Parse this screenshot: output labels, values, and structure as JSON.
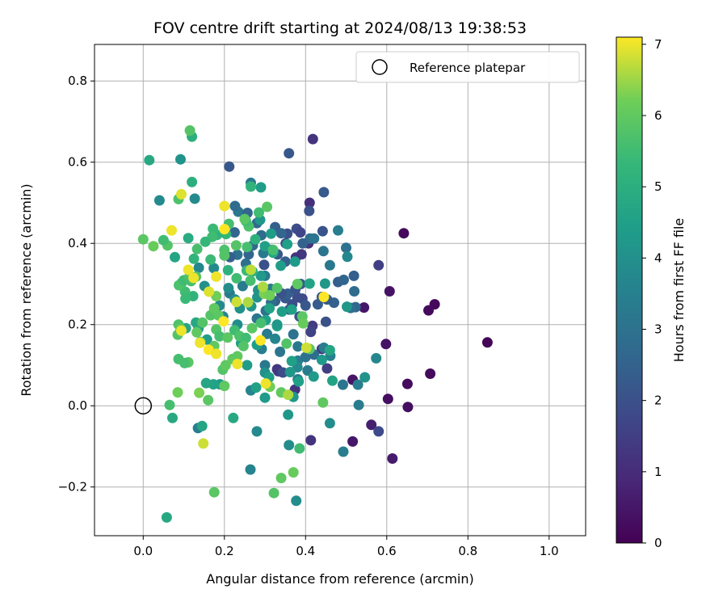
{
  "chart_data": {
    "type": "scatter",
    "title": "FOV centre drift starting at 2024/08/13 19:38:53",
    "xlabel": "Angular distance from reference (arcmin)",
    "ylabel": "Rotation from reference (arcmin)",
    "xlim": [
      -0.12,
      1.09
    ],
    "ylim": [
      -0.32,
      0.89
    ],
    "xticks": [
      0.0,
      0.2,
      0.4,
      0.6,
      0.8,
      1.0
    ],
    "xtick_labels": [
      "0.0",
      "0.2",
      "0.4",
      "0.6",
      "0.8",
      "1.0"
    ],
    "yticks": [
      -0.2,
      0.0,
      0.2,
      0.4,
      0.6,
      0.8
    ],
    "ytick_labels": [
      "−0.2",
      "0.0",
      "0.2",
      "0.4",
      "0.6",
      "0.8"
    ],
    "grid": true,
    "legend": {
      "placement": "top-right",
      "entries": [
        {
          "label": "Reference platepar",
          "marker": "open-circle"
        }
      ]
    },
    "reference_point": {
      "x": 0.0,
      "y": 0.0
    },
    "colorbar": {
      "label": "Hours from first FF file",
      "colormap": "viridis",
      "range": [
        0,
        7.1
      ],
      "ticks": [
        0,
        1,
        2,
        3,
        4,
        5,
        6,
        7
      ],
      "tick_labels": [
        "0",
        "1",
        "2",
        "3",
        "4",
        "5",
        "6",
        "7"
      ]
    },
    "points": [
      [
        0.848,
        0.156,
        0.1
      ],
      [
        0.642,
        0.425,
        0.15
      ],
      [
        0.718,
        0.25,
        0.15
      ],
      [
        0.703,
        0.235,
        0.2
      ],
      [
        0.707,
        0.079,
        0.2
      ],
      [
        0.651,
        0.054,
        0.25
      ],
      [
        0.652,
        -0.003,
        0.3
      ],
      [
        0.603,
        0.017,
        0.3
      ],
      [
        0.607,
        0.282,
        0.4
      ],
      [
        0.598,
        0.152,
        0.4
      ],
      [
        0.614,
        -0.13,
        0.6
      ],
      [
        0.562,
        -0.047,
        0.7
      ],
      [
        0.516,
        -0.088,
        0.5
      ],
      [
        0.516,
        0.064,
        0.45
      ],
      [
        0.544,
        0.242,
        0.5
      ],
      [
        0.58,
        0.346,
        1.5
      ],
      [
        0.58,
        -0.063,
        1.8
      ],
      [
        0.418,
        0.657,
        1.2
      ],
      [
        0.41,
        0.5,
        1.1
      ],
      [
        0.413,
        -0.085,
        1.2
      ],
      [
        0.44,
        0.14,
        1.3
      ],
      [
        0.453,
        0.092,
        1.5
      ],
      [
        0.417,
        0.197,
        1.4
      ],
      [
        0.407,
        0.4,
        1.2
      ],
      [
        0.39,
        0.373,
        1.3
      ],
      [
        0.376,
        0.365,
        1.2
      ],
      [
        0.413,
        0.182,
        1.6
      ],
      [
        0.374,
        0.04,
        1.2
      ],
      [
        0.333,
        0.085,
        1.5
      ],
      [
        0.33,
        0.09,
        1.3
      ],
      [
        0.344,
        0.082,
        1.9
      ],
      [
        0.359,
        0.622,
        2.2
      ],
      [
        0.212,
        0.589,
        2.2
      ],
      [
        0.409,
        0.48,
        2.0
      ],
      [
        0.445,
        0.526,
        2.3
      ],
      [
        0.442,
        0.43,
        2.1
      ],
      [
        0.378,
        0.436,
        1.9
      ],
      [
        0.387,
        0.427,
        1.7
      ],
      [
        0.355,
        0.424,
        2.0
      ],
      [
        0.351,
        0.4,
        1.8
      ],
      [
        0.325,
        0.44,
        2.4
      ],
      [
        0.34,
        0.425,
        2.6
      ],
      [
        0.316,
        0.384,
        2.6
      ],
      [
        0.331,
        0.373,
        2.2
      ],
      [
        0.298,
        0.347,
        2.0
      ],
      [
        0.35,
        0.355,
        2.4
      ],
      [
        0.392,
        0.264,
        1.8
      ],
      [
        0.367,
        0.25,
        1.9
      ],
      [
        0.385,
        0.22,
        2.1
      ],
      [
        0.35,
        0.265,
        2.2
      ],
      [
        0.36,
        0.237,
        2.1
      ],
      [
        0.356,
        0.276,
        2.4
      ],
      [
        0.38,
        0.267,
        1.9
      ],
      [
        0.34,
        0.277,
        2.0
      ],
      [
        0.325,
        0.258,
        2.5
      ],
      [
        0.4,
        0.247,
        2.2
      ],
      [
        0.375,
        0.287,
        2.1
      ],
      [
        0.388,
        0.3,
        2.3
      ],
      [
        0.43,
        0.25,
        2.3
      ],
      [
        0.44,
        0.268,
        2.2
      ],
      [
        0.45,
        0.207,
        2.0
      ],
      [
        0.47,
        0.254,
        2.5
      ],
      [
        0.453,
        0.262,
        2.3
      ],
      [
        0.48,
        0.305,
        2.4
      ],
      [
        0.494,
        0.31,
        2.6
      ],
      [
        0.519,
        0.32,
        2.4
      ],
      [
        0.52,
        0.282,
        2.8
      ],
      [
        0.523,
        0.243,
        2.7
      ],
      [
        0.511,
        0.241,
        2.9
      ],
      [
        0.5,
        0.389,
        3.0
      ],
      [
        0.48,
        0.432,
        3.4
      ],
      [
        0.503,
        0.367,
        3.7
      ],
      [
        0.411,
        0.412,
        2.9
      ],
      [
        0.421,
        0.412,
        3.1
      ],
      [
        0.393,
        0.4,
        2.5
      ],
      [
        0.444,
        0.381,
        3.1
      ],
      [
        0.46,
        0.346,
        3.2
      ],
      [
        0.265,
        0.549,
        3.2
      ],
      [
        0.234,
        0.478,
        3.2
      ],
      [
        0.257,
        0.475,
        2.6
      ],
      [
        0.226,
        0.492,
        2.8
      ],
      [
        0.28,
        0.45,
        2.7
      ],
      [
        0.291,
        0.42,
        2.8
      ],
      [
        0.27,
        0.395,
        2.7
      ],
      [
        0.26,
        0.373,
        2.6
      ],
      [
        0.253,
        0.35,
        2.9
      ],
      [
        0.232,
        0.372,
        3.0
      ],
      [
        0.214,
        0.366,
        2.4
      ],
      [
        0.225,
        0.427,
        2.6
      ],
      [
        0.296,
        0.376,
        3.2
      ],
      [
        0.3,
        0.32,
        3.3
      ],
      [
        0.314,
        0.288,
        3.3
      ],
      [
        0.315,
        0.255,
        2.9
      ],
      [
        0.302,
        0.234,
        3.0
      ],
      [
        0.28,
        0.215,
        3.1
      ],
      [
        0.245,
        0.295,
        3.3
      ],
      [
        0.213,
        0.277,
        3.2
      ],
      [
        0.305,
        0.177,
        3.3
      ],
      [
        0.325,
        0.165,
        3.6
      ],
      [
        0.292,
        0.14,
        3.4
      ],
      [
        0.337,
        0.133,
        3.1
      ],
      [
        0.37,
        0.176,
        3.0
      ],
      [
        0.381,
        0.146,
        3.2
      ],
      [
        0.381,
        0.111,
        3.4
      ],
      [
        0.4,
        0.12,
        3.0
      ],
      [
        0.421,
        0.126,
        2.8
      ],
      [
        0.445,
        0.143,
        3.3
      ],
      [
        0.461,
        0.123,
        3.5
      ],
      [
        0.405,
        0.087,
        3.3
      ],
      [
        0.381,
        0.065,
        3.2
      ],
      [
        0.38,
        0.095,
        3.8
      ],
      [
        0.492,
        0.052,
        3.1
      ],
      [
        0.529,
        0.052,
        3.4
      ],
      [
        0.531,
        0.002,
        3.3
      ],
      [
        0.493,
        -0.113,
        3.4
      ],
      [
        0.46,
        -0.043,
        3.9
      ],
      [
        0.574,
        0.117,
        3.7
      ],
      [
        0.546,
        0.07,
        4.1
      ],
      [
        0.377,
        -0.234,
        3.9
      ],
      [
        0.264,
        -0.157,
        3.6
      ],
      [
        0.28,
        -0.063,
        3.8
      ],
      [
        0.357,
        -0.022,
        4.2
      ],
      [
        0.359,
        -0.097,
        3.9
      ],
      [
        0.135,
        -0.055,
        3.4
      ],
      [
        0.265,
        0.038,
        3.6
      ],
      [
        0.3,
        0.1,
        3.2
      ],
      [
        0.232,
        0.2,
        3.9
      ],
      [
        0.21,
        0.29,
        3.9
      ],
      [
        0.226,
        0.262,
        3.9
      ],
      [
        0.188,
        0.247,
        3.8
      ],
      [
        0.197,
        0.22,
        3.7
      ],
      [
        0.151,
        0.295,
        4.0
      ],
      [
        0.174,
        0.339,
        3.8
      ],
      [
        0.137,
        0.34,
        3.7
      ],
      [
        0.127,
        0.51,
        3.8
      ],
      [
        0.092,
        0.607,
        4.1
      ],
      [
        0.04,
        0.506,
        3.8
      ],
      [
        0.238,
        0.24,
        4.0
      ],
      [
        0.266,
        0.245,
        4.2
      ],
      [
        0.283,
        0.285,
        4.1
      ],
      [
        0.29,
        0.538,
        4.4
      ],
      [
        0.288,
        0.458,
        4.2
      ],
      [
        0.315,
        0.424,
        4.4
      ],
      [
        0.3,
        0.393,
        4.5
      ],
      [
        0.355,
        0.398,
        4.5
      ],
      [
        0.374,
        0.355,
        4.3
      ],
      [
        0.32,
        0.377,
        4.7
      ],
      [
        0.29,
        0.32,
        4.3
      ],
      [
        0.281,
        0.267,
        4.1
      ],
      [
        0.311,
        0.24,
        4.6
      ],
      [
        0.302,
        0.211,
        4.5
      ],
      [
        0.33,
        0.196,
        4.7
      ],
      [
        0.342,
        0.232,
        4.4
      ],
      [
        0.33,
        0.2,
        4.2
      ],
      [
        0.366,
        0.237,
        4.5
      ],
      [
        0.339,
        0.345,
        4.4
      ],
      [
        0.41,
        0.301,
        4.6
      ],
      [
        0.448,
        0.301,
        4.2
      ],
      [
        0.502,
        0.244,
        4.2
      ],
      [
        0.44,
        0.113,
        4.3
      ],
      [
        0.46,
        0.137,
        4.7
      ],
      [
        0.42,
        0.072,
        4.3
      ],
      [
        0.466,
        0.062,
        4.6
      ],
      [
        0.383,
        0.06,
        4.5
      ],
      [
        0.37,
        0.022,
        4.2
      ],
      [
        0.366,
        0.11,
        4.5
      ],
      [
        0.362,
        0.083,
        4.2
      ],
      [
        0.3,
        0.082,
        4.0
      ],
      [
        0.31,
        0.07,
        4.4
      ],
      [
        0.3,
        0.02,
        4.3
      ],
      [
        0.278,
        0.045,
        4.5
      ],
      [
        0.256,
        0.1,
        4.4
      ],
      [
        0.241,
        0.154,
        4.5
      ],
      [
        0.28,
        0.15,
        4.4
      ],
      [
        0.189,
        0.053,
        4.3
      ],
      [
        0.173,
        0.053,
        4.6
      ],
      [
        0.155,
        0.056,
        4.7
      ],
      [
        0.157,
        0.163,
        4.4
      ],
      [
        0.136,
        0.19,
        4.3
      ],
      [
        0.13,
        0.205,
        4.8
      ],
      [
        0.105,
        0.191,
        4.7
      ],
      [
        0.111,
        0.413,
        4.9
      ],
      [
        0.12,
        0.551,
        5.0
      ],
      [
        0.12,
        0.663,
        5.0
      ],
      [
        0.015,
        0.605,
        4.8
      ],
      [
        0.078,
        0.366,
        4.7
      ],
      [
        0.072,
        -0.03,
        4.8
      ],
      [
        0.058,
        -0.275,
        4.8
      ],
      [
        0.145,
        -0.05,
        4.7
      ],
      [
        0.222,
        -0.03,
        4.8
      ],
      [
        0.265,
        0.54,
        5.2
      ],
      [
        0.276,
        0.41,
        5.1
      ],
      [
        0.255,
        0.333,
        5.4
      ],
      [
        0.269,
        0.331,
        5.1
      ],
      [
        0.264,
        0.308,
        5.6
      ],
      [
        0.209,
        0.334,
        5.1
      ],
      [
        0.23,
        0.314,
        5.5
      ],
      [
        0.204,
        0.423,
        5.3
      ],
      [
        0.182,
        0.421,
        5.2
      ],
      [
        0.172,
        0.436,
        5.4
      ],
      [
        0.17,
        0.416,
        5.5
      ],
      [
        0.153,
        0.404,
        5.3
      ],
      [
        0.166,
        0.36,
        5.4
      ],
      [
        0.125,
        0.362,
        5.2
      ],
      [
        0.133,
        0.386,
        5.6
      ],
      [
        0.123,
        0.27,
        5.2
      ],
      [
        0.103,
        0.281,
        5.5
      ],
      [
        0.095,
        0.303,
        5.6
      ],
      [
        0.088,
        0.297,
        5.7
      ],
      [
        0.1,
        0.309,
        5.5
      ],
      [
        0.114,
        0.318,
        5.7
      ],
      [
        0.118,
        0.307,
        5.6
      ],
      [
        0.13,
        0.318,
        5.8
      ],
      [
        0.104,
        0.264,
        5.4
      ],
      [
        0.2,
        0.384,
        5.7
      ],
      [
        0.2,
        0.37,
        5.8
      ],
      [
        0.229,
        0.395,
        5.8
      ],
      [
        0.256,
        0.391,
        5.6
      ],
      [
        0.211,
        0.448,
        5.6
      ],
      [
        0.26,
        0.442,
        5.7
      ],
      [
        0.253,
        0.455,
        5.5
      ],
      [
        0.25,
        0.46,
        5.9
      ],
      [
        0.285,
        0.476,
        5.5
      ],
      [
        0.305,
        0.49,
        5.9
      ],
      [
        0.32,
        0.384,
        5.6
      ],
      [
        0.33,
        0.29,
        5.8
      ],
      [
        0.38,
        0.3,
        6.0
      ],
      [
        0.392,
        0.22,
        5.9
      ],
      [
        0.353,
        0.153,
        5.8
      ],
      [
        0.394,
        0.203,
        6.1
      ],
      [
        0.41,
        0.14,
        5.9
      ],
      [
        0.443,
        0.008,
        6.0
      ],
      [
        0.34,
        0.033,
        6.0
      ],
      [
        0.34,
        -0.178,
        6.0
      ],
      [
        0.37,
        -0.164,
        6.1
      ],
      [
        0.322,
        -0.215,
        5.8
      ],
      [
        0.385,
        -0.105,
        5.5
      ],
      [
        0.175,
        -0.213,
        5.9
      ],
      [
        0.16,
        0.014,
        5.9
      ],
      [
        0.2,
        0.049,
        6.0
      ],
      [
        0.196,
        0.089,
        5.8
      ],
      [
        0.166,
        0.223,
        5.8
      ],
      [
        0.185,
        0.223,
        5.9
      ],
      [
        0.18,
        0.188,
        5.8
      ],
      [
        0.188,
        0.171,
        5.6
      ],
      [
        0.208,
        0.168,
        5.9
      ],
      [
        0.225,
        0.186,
        5.5
      ],
      [
        0.237,
        0.172,
        5.7
      ],
      [
        0.253,
        0.167,
        5.5
      ],
      [
        0.247,
        0.147,
        5.8
      ],
      [
        0.29,
        0.204,
        5.6
      ],
      [
        0.268,
        0.191,
        5.9
      ],
      [
        0.175,
        0.147,
        6.0
      ],
      [
        0.141,
        0.157,
        5.9
      ],
      [
        0.132,
        0.181,
        6.0
      ],
      [
        0.146,
        0.205,
        5.8
      ],
      [
        0.111,
        0.107,
        5.9
      ],
      [
        0.102,
        0.105,
        5.6
      ],
      [
        0.087,
        0.115,
        5.6
      ],
      [
        0.087,
        0.2,
        5.7
      ],
      [
        0.085,
        0.175,
        5.8
      ],
      [
        0.092,
        0.19,
        6.0
      ],
      [
        0.06,
        0.395,
        5.8
      ],
      [
        0.05,
        0.408,
        5.5
      ],
      [
        0.0,
        0.41,
        5.9
      ],
      [
        0.025,
        0.393,
        6.1
      ],
      [
        0.115,
        0.678,
        5.8
      ],
      [
        0.087,
        0.509,
        5.7
      ],
      [
        0.085,
        0.033,
        6.2
      ],
      [
        0.138,
        0.032,
        6.3
      ],
      [
        0.065,
        0.002,
        5.6
      ],
      [
        0.175,
        0.24,
        6.0
      ],
      [
        0.18,
        0.27,
        6.2
      ],
      [
        0.22,
        0.115,
        6.0
      ],
      [
        0.232,
        0.122,
        6.0
      ],
      [
        0.203,
        0.1,
        6.0
      ],
      [
        0.312,
        0.047,
        6.2
      ],
      [
        0.298,
        0.276,
        6.3
      ],
      [
        0.295,
        0.293,
        6.6
      ],
      [
        0.312,
        0.272,
        6.2
      ],
      [
        0.357,
        0.027,
        6.6
      ],
      [
        0.258,
        0.255,
        6.6
      ],
      [
        0.265,
        0.335,
        6.7
      ],
      [
        0.23,
        0.256,
        6.8
      ],
      [
        0.162,
        0.281,
        6.9
      ],
      [
        0.094,
        0.521,
        6.9
      ],
      [
        0.07,
        0.432,
        7.0
      ],
      [
        0.2,
        0.435,
        7.1
      ],
      [
        0.2,
        0.492,
        7.0
      ],
      [
        0.111,
        0.335,
        7.0
      ],
      [
        0.124,
        0.315,
        7.0
      ],
      [
        0.18,
        0.318,
        7.0
      ],
      [
        0.094,
        0.185,
        7.0
      ],
      [
        0.14,
        0.155,
        7.0
      ],
      [
        0.161,
        0.138,
        7.1
      ],
      [
        0.18,
        0.128,
        7.0
      ],
      [
        0.198,
        0.208,
        7.1
      ],
      [
        0.232,
        0.103,
        7.0
      ],
      [
        0.289,
        0.161,
        7.1
      ],
      [
        0.302,
        0.055,
        7.0
      ],
      [
        0.148,
        -0.093,
        6.8
      ],
      [
        0.402,
        0.143,
        6.8
      ],
      [
        0.445,
        0.268,
        7.1
      ]
    ]
  }
}
